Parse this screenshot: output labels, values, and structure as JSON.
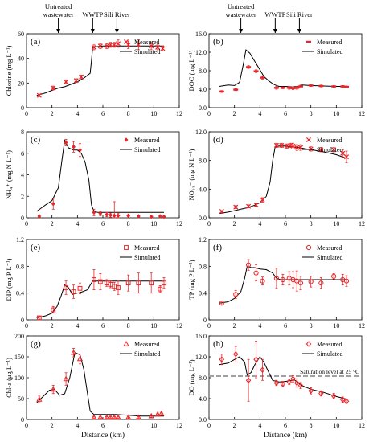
{
  "figure": {
    "x_axis_label": "Distance (km)",
    "markers": [
      {
        "label_lines": [
          "Untreated",
          "wastewater"
        ],
        "x": 2.5
      },
      {
        "label_lines": [
          "WWTP"
        ],
        "x": 5.2
      },
      {
        "label_lines": [
          "Sili River"
        ],
        "x": 7.1
      }
    ],
    "colors": {
      "measured": "#e8262a",
      "simulated": "#000000",
      "saturation": "#a0a0a0"
    }
  },
  "chart_data": [
    {
      "type": "scatter",
      "panel": "(a)",
      "ylabel": "Chlorine (mg L⁻¹)",
      "xlim": [
        0,
        12
      ],
      "ylim": [
        0,
        60
      ],
      "yticks": [
        0,
        20,
        40,
        60
      ],
      "xticks": [
        0,
        2,
        4,
        6,
        8,
        10,
        12
      ],
      "marker": "x",
      "legend": [
        "Measured",
        "Simulated"
      ],
      "measured": {
        "x": [
          1.0,
          2.1,
          3.1,
          3.9,
          4.3,
          5.3,
          5.8,
          6.3,
          6.6,
          6.9,
          7.2,
          8.0,
          8.8,
          9.8,
          10.3,
          10.7
        ],
        "y": [
          10,
          16,
          21,
          22,
          25,
          49,
          50,
          50,
          51,
          51,
          52,
          51,
          51,
          50,
          49,
          48
        ],
        "err": [
          1,
          1.5,
          1.5,
          1.5,
          1.5,
          2,
          2,
          2,
          2,
          2,
          3,
          3,
          4,
          3,
          2,
          2
        ]
      },
      "simulated": {
        "x": [
          0.8,
          1.5,
          2.0,
          2.5,
          3.0,
          3.5,
          4.0,
          4.5,
          5.0,
          5.1,
          5.2,
          5.5,
          6.0,
          7.0,
          8.0,
          9.0,
          10.0,
          10.8
        ],
        "y": [
          10,
          12,
          14,
          16,
          17,
          19,
          21,
          24,
          28,
          38,
          49,
          49.5,
          50,
          50,
          50,
          50,
          50,
          50
        ]
      }
    },
    {
      "type": "scatter",
      "panel": "(b)",
      "ylabel": "DOC (mg L⁻¹)",
      "xlim": [
        0,
        12
      ],
      "ylim": [
        0,
        16
      ],
      "yticks": [
        0.0,
        4.0,
        8.0,
        12.0,
        16.0
      ],
      "xticks": [
        0,
        2,
        4,
        6,
        8,
        10,
        12
      ],
      "ytick_labels": [
        "0.0",
        "4.0",
        "8.0",
        "12.0",
        "16.0"
      ],
      "marker": "dash",
      "legend": [
        "Measured",
        "Simulated"
      ],
      "measured": {
        "x": [
          1.0,
          2.1,
          3.1,
          3.7,
          4.2,
          5.3,
          5.8,
          6.3,
          6.6,
          6.9,
          7.2,
          8.0,
          8.8,
          9.8,
          10.5,
          10.8
        ],
        "y": [
          3.5,
          3.9,
          8.8,
          7.9,
          6.5,
          4.3,
          4.3,
          4.3,
          4.2,
          4.3,
          4.6,
          4.8,
          4.7,
          4.6,
          4.6,
          4.5
        ],
        "err": [
          0.2,
          0.2,
          0.3,
          0.3,
          0.3,
          0.3,
          0.2,
          0.3,
          0.3,
          0.3,
          0.3,
          0.2,
          0.2,
          0.2,
          0.2,
          0.2
        ]
      },
      "simulated": {
        "x": [
          0.8,
          1.5,
          2.0,
          2.4,
          2.7,
          2.9,
          3.2,
          3.6,
          4.0,
          4.3,
          4.7,
          5.0,
          5.2,
          5.5,
          6.0,
          6.5,
          7.0,
          7.3,
          8.0,
          9.0,
          10.0,
          10.8
        ],
        "y": [
          4.6,
          4.9,
          4.8,
          5.5,
          9.5,
          12.5,
          11.8,
          10.0,
          8.2,
          6.8,
          5.8,
          5.2,
          4.9,
          4.6,
          4.6,
          4.5,
          4.6,
          4.9,
          4.8,
          4.7,
          4.6,
          4.6
        ]
      }
    },
    {
      "type": "scatter",
      "panel": "(c)",
      "ylabel": "NH₄⁺ (mg N L⁻¹)",
      "xlim": [
        0,
        12
      ],
      "ylim": [
        0,
        8
      ],
      "yticks": [
        0,
        2,
        4,
        6,
        8
      ],
      "xticks": [
        0,
        2,
        4,
        6,
        8,
        10,
        12
      ],
      "marker": "diamond",
      "legend": [
        "Measured",
        "Simulated"
      ],
      "measured": {
        "x": [
          1.0,
          2.1,
          3.1,
          3.7,
          4.2,
          5.3,
          5.8,
          6.3,
          6.6,
          6.9,
          7.2,
          8.0,
          8.8,
          9.8,
          10.5,
          10.8
        ],
        "y": [
          0.15,
          1.3,
          7.0,
          6.6,
          6.3,
          0.5,
          0.4,
          0.3,
          0.25,
          0.2,
          0.2,
          0.2,
          0.15,
          0.1,
          0.15,
          0.1
        ],
        "err": [
          0.1,
          0.5,
          0.3,
          0.5,
          0.6,
          0.3,
          0.2,
          0.2,
          0.2,
          1.3,
          0.2,
          0.1,
          0.1,
          0.1,
          0.1,
          0.1
        ]
      },
      "simulated": {
        "x": [
          0.8,
          1.5,
          2.0,
          2.5,
          2.8,
          3.0,
          3.3,
          3.7,
          4.0,
          4.3,
          4.6,
          4.9,
          5.1,
          5.3,
          5.6,
          6.0,
          7.0,
          8.0,
          9.0,
          10.0,
          10.8
        ],
        "y": [
          0.6,
          1.2,
          1.6,
          2.8,
          5.5,
          7.2,
          6.5,
          6.3,
          6.3,
          6.0,
          5.2,
          3.5,
          1.2,
          0.6,
          0.5,
          0.5,
          0.5,
          0.5,
          0.5,
          0.5,
          0.5
        ]
      }
    },
    {
      "type": "scatter",
      "panel": "(d)",
      "ylabel": "NO₂₃⁻ (mg N L⁻¹)",
      "xlim": [
        0,
        12
      ],
      "ylim": [
        0,
        12
      ],
      "yticks": [
        0.0,
        4.0,
        8.0,
        12.0
      ],
      "xticks": [
        0,
        2,
        4,
        6,
        8,
        10,
        12
      ],
      "ytick_labels": [
        "0.0",
        "4.0",
        "8.0",
        "12.0"
      ],
      "marker": "x",
      "legend": [
        "Measured",
        "Simulated"
      ],
      "measured": {
        "x": [
          1.0,
          2.1,
          3.1,
          3.7,
          4.2,
          5.3,
          5.7,
          6.1,
          6.4,
          6.6,
          6.9,
          7.2,
          8.0,
          8.8,
          9.8,
          10.5,
          10.8
        ],
        "y": [
          0.9,
          1.5,
          1.6,
          1.8,
          2.5,
          10.1,
          10.1,
          10.0,
          10.1,
          10.0,
          9.8,
          9.8,
          9.6,
          9.5,
          9.5,
          9.0,
          8.5
        ],
        "err": [
          0.1,
          0.2,
          0.2,
          0.2,
          0.3,
          0.3,
          0.3,
          0.3,
          0.3,
          0.4,
          0.4,
          0.4,
          0.3,
          0.3,
          0.3,
          0.5,
          0.8
        ]
      },
      "simulated": {
        "x": [
          0.8,
          1.5,
          2.0,
          2.5,
          3.0,
          3.5,
          4.0,
          4.5,
          4.8,
          5.0,
          5.2,
          5.5,
          6.0,
          7.0,
          8.0,
          9.0,
          10.0,
          10.8
        ],
        "y": [
          0.6,
          0.8,
          1.0,
          1.2,
          1.4,
          1.7,
          2.1,
          3.0,
          5.0,
          8.0,
          9.9,
          10.0,
          10.0,
          9.8,
          9.5,
          9.2,
          8.8,
          8.3
        ]
      }
    },
    {
      "type": "scatter",
      "panel": "(e)",
      "ylabel": "DIP (mg P L⁻¹)",
      "xlim": [
        0,
        12
      ],
      "ylim": [
        0,
        1.2
      ],
      "yticks": [
        0,
        0.4,
        0.8,
        1.2
      ],
      "xticks": [
        0,
        2,
        4,
        6,
        8,
        10,
        12
      ],
      "ytick_labels": [
        "0",
        "0.4",
        "0.8",
        "1.2"
      ],
      "marker": "square",
      "legend": [
        "Measured",
        "Simulated"
      ],
      "measured": {
        "x": [
          1.0,
          2.1,
          3.1,
          3.7,
          4.2,
          5.3,
          5.8,
          6.3,
          6.6,
          6.9,
          7.2,
          8.0,
          8.8,
          9.8,
          10.5,
          10.8
        ],
        "y": [
          0.03,
          0.15,
          0.48,
          0.42,
          0.47,
          0.6,
          0.57,
          0.55,
          0.53,
          0.5,
          0.48,
          0.55,
          0.55,
          0.55,
          0.46,
          0.55
        ],
        "err": [
          0.02,
          0.05,
          0.1,
          0.1,
          0.08,
          0.15,
          0.12,
          0.05,
          0.05,
          0.06,
          0.1,
          0.12,
          0.15,
          0.15,
          0.05,
          0.08
        ]
      },
      "simulated": {
        "x": [
          0.8,
          1.5,
          2.0,
          2.4,
          2.7,
          3.0,
          3.3,
          3.6,
          4.0,
          4.4,
          4.8,
          5.0,
          5.2,
          5.5,
          6.0,
          7.0,
          8.0,
          9.0,
          10.0,
          10.8
        ],
        "y": [
          0.03,
          0.06,
          0.1,
          0.2,
          0.35,
          0.52,
          0.48,
          0.38,
          0.4,
          0.42,
          0.45,
          0.52,
          0.58,
          0.58,
          0.58,
          0.58,
          0.58,
          0.58,
          0.58,
          0.58
        ]
      }
    },
    {
      "type": "scatter",
      "panel": "(f)",
      "ylabel": "TP (mg P L⁻¹)",
      "xlim": [
        0,
        12
      ],
      "ylim": [
        0,
        1.2
      ],
      "yticks": [
        0,
        0.4,
        0.8,
        1.2
      ],
      "xticks": [
        0,
        2,
        4,
        6,
        8,
        10,
        12
      ],
      "ytick_labels": [
        "0",
        "0.4",
        "0.8",
        "1.2"
      ],
      "marker": "circle",
      "legend": [
        "Measured",
        "Simulated"
      ],
      "measured": {
        "x": [
          1.0,
          2.1,
          3.1,
          3.7,
          4.2,
          5.3,
          5.8,
          6.3,
          6.6,
          6.9,
          7.2,
          8.0,
          8.8,
          9.8,
          10.5,
          10.8
        ],
        "y": [
          0.25,
          0.38,
          0.82,
          0.7,
          0.58,
          0.62,
          0.6,
          0.62,
          0.6,
          0.58,
          0.55,
          0.57,
          0.55,
          0.65,
          0.6,
          0.58
        ],
        "err": [
          0.03,
          0.06,
          0.08,
          0.12,
          0.06,
          0.15,
          0.08,
          0.1,
          0.12,
          0.15,
          0.1,
          0.08,
          0.08,
          0.04,
          0.08,
          0.08
        ]
      },
      "simulated": {
        "x": [
          0.8,
          1.5,
          2.0,
          2.5,
          2.8,
          3.0,
          3.3,
          3.6,
          4.0,
          4.5,
          5.0,
          5.3,
          5.6,
          6.0,
          7.0,
          8.0,
          9.0,
          10.0,
          10.8
        ],
        "y": [
          0.25,
          0.27,
          0.32,
          0.42,
          0.62,
          0.8,
          0.78,
          0.78,
          0.76,
          0.75,
          0.7,
          0.62,
          0.6,
          0.6,
          0.6,
          0.6,
          0.6,
          0.6,
          0.6
        ]
      }
    },
    {
      "type": "scatter",
      "panel": "(g)",
      "ylabel": "Chl-a (μg L⁻¹)",
      "xlim": [
        0,
        12
      ],
      "ylim": [
        0,
        200
      ],
      "yticks": [
        0,
        50,
        100,
        150,
        200
      ],
      "xticks": [
        0,
        2,
        4,
        6,
        8,
        10,
        12
      ],
      "xlabel": "Distance (km)",
      "marker": "triangle",
      "legend": [
        "Measured",
        "Simulated"
      ],
      "measured": {
        "x": [
          1.0,
          2.1,
          3.1,
          3.7,
          4.2,
          5.3,
          5.8,
          6.3,
          6.6,
          6.9,
          7.2,
          8.0,
          8.8,
          9.8,
          10.3,
          10.6
        ],
        "y": [
          48,
          72,
          97,
          160,
          145,
          5,
          5,
          5,
          5,
          5,
          5,
          5,
          5,
          8,
          12,
          14
        ],
        "err": [
          8,
          10,
          15,
          10,
          12,
          2,
          2,
          2,
          2,
          2,
          2,
          2,
          2,
          3,
          3,
          3
        ]
      },
      "simulated": {
        "x": [
          0.8,
          1.3,
          1.8,
          2.2,
          2.6,
          3.0,
          3.4,
          3.8,
          4.2,
          4.5,
          4.8,
          5.0,
          5.3,
          6.0,
          7.0,
          8.0,
          9.0,
          10.0,
          10.8
        ],
        "y": [
          40,
          55,
          70,
          72,
          58,
          62,
          100,
          160,
          155,
          120,
          60,
          20,
          12,
          12,
          12,
          10,
          8,
          8,
          8
        ]
      }
    },
    {
      "type": "scatter",
      "panel": "(h)",
      "ylabel": "DO (mg L⁻¹)",
      "xlim": [
        0,
        12
      ],
      "ylim": [
        0,
        16
      ],
      "yticks": [
        0.0,
        4.0,
        8.0,
        12.0,
        16.0
      ],
      "xticks": [
        0,
        2,
        4,
        6,
        8,
        10,
        12
      ],
      "ytick_labels": [
        "0.0",
        "4.0",
        "8.0",
        "12.0",
        "16.0"
      ],
      "xlabel": "Distance (km)",
      "marker": "diamond-open",
      "legend": [
        "Measured",
        "Simulated"
      ],
      "reference_line": {
        "y": 8.3,
        "label": "Saturation level at 25 °C"
      },
      "measured": {
        "x": [
          1.0,
          2.1,
          3.1,
          3.7,
          4.2,
          5.3,
          5.8,
          6.3,
          6.6,
          6.9,
          7.2,
          8.0,
          8.8,
          9.8,
          10.5,
          10.8
        ],
        "y": [
          11.5,
          12.5,
          7.5,
          11.5,
          9.5,
          7.0,
          6.8,
          7.2,
          7.8,
          7.0,
          6.5,
          5.5,
          5.0,
          4.5,
          3.8,
          3.5
        ],
        "err": [
          1.0,
          1.5,
          4.0,
          3.5,
          2.0,
          0.5,
          0.5,
          0.5,
          0.6,
          0.8,
          0.6,
          0.6,
          0.5,
          0.5,
          0.5,
          0.4
        ]
      },
      "simulated": {
        "x": [
          0.8,
          1.5,
          2.0,
          2.4,
          2.8,
          3.0,
          3.3,
          3.6,
          4.0,
          4.3,
          4.7,
          5.0,
          5.5,
          6.0,
          6.7,
          7.3,
          8.0,
          9.0,
          10.0,
          10.8
        ],
        "y": [
          10.5,
          10.8,
          11.5,
          12.0,
          11.0,
          8.5,
          9.0,
          10.5,
          12.0,
          11.0,
          9.0,
          7.5,
          7.2,
          7.3,
          7.6,
          6.5,
          5.8,
          5.2,
          4.4,
          3.9
        ]
      }
    }
  ]
}
